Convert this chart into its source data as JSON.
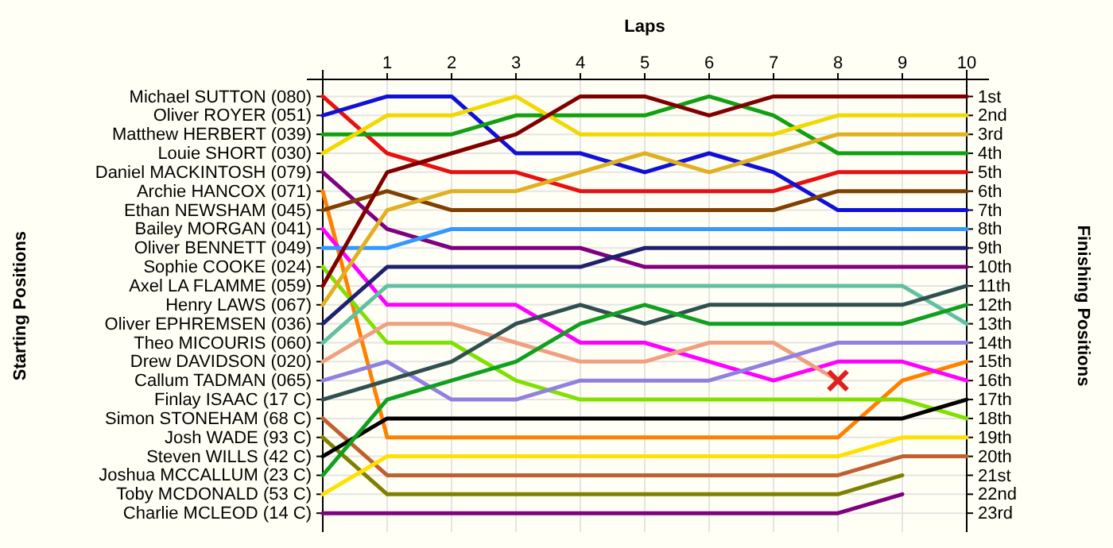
{
  "chart_data": {
    "type": "line",
    "xlabel": "Laps",
    "y2label": "Finishing Positions",
    "x": [
      0,
      1,
      2,
      3,
      4,
      5,
      6,
      7,
      8,
      9,
      10
    ],
    "xlim": [
      0,
      10
    ],
    "xticks": [
      1,
      2,
      3,
      4,
      5,
      6,
      7,
      8,
      9,
      10
    ],
    "y2lim": [
      24,
      0.1
    ],
    "y2ticks": [
      {
        "value": 1,
        "label": "1st"
      },
      {
        "value": 2,
        "label": "2nd"
      },
      {
        "value": 3,
        "label": "3rd"
      },
      {
        "value": 4,
        "label": "4th"
      },
      {
        "value": 5,
        "label": "5th"
      },
      {
        "value": 6,
        "label": "6th"
      },
      {
        "value": 7,
        "label": "7th"
      },
      {
        "value": 8,
        "label": "8th"
      },
      {
        "value": 9,
        "label": "9th"
      },
      {
        "value": 10,
        "label": "10th"
      },
      {
        "value": 11,
        "label": "11th"
      },
      {
        "value": 12,
        "label": "12th"
      },
      {
        "value": 13,
        "label": "13th"
      },
      {
        "value": 14,
        "label": "14th"
      },
      {
        "value": 15,
        "label": "15th"
      },
      {
        "value": 16,
        "label": "16th"
      },
      {
        "value": 17,
        "label": "17th"
      },
      {
        "value": 18,
        "label": "18th"
      },
      {
        "value": 19,
        "label": "19th"
      },
      {
        "value": 20,
        "label": "20th"
      },
      {
        "value": 21,
        "label": "21st"
      },
      {
        "value": 22,
        "label": "22nd"
      },
      {
        "value": 23,
        "label": "23rd"
      }
    ],
    "grid": true,
    "annotations": [
      "Michael SUTTON (080)",
      "Oliver ROYER (051)",
      "Matthew HERBERT (039)",
      "Louie SHORT (030)",
      "Daniel MACKINTOSH (079)",
      "Archie HANCOX (071)",
      "Ethan NEWSHAM (045)",
      "Bailey MORGAN (041)",
      "Oliver BENNETT (049)",
      "Sophie COOKE (024)",
      "Axel LA FLAMME (059)",
      "Henry LAWS (067)",
      "Oliver EPHREMSEN (036)",
      "Theo MICOURIS (060)",
      "Drew DAVIDSON (020)",
      "Callum TADMAN (065)",
      "Finlay ISAAC (17 C)",
      "Simon STONEHAM (68 C)",
      "Josh WADE (93 C)",
      "Steven WILLS (42 C)",
      "Joshua MCCALLUM (23 C)",
      "Toby MCDONALD (53 C)",
      "Charlie MCLEOD (14 C)",
      "Starting Positions"
    ],
    "series": [
      {
        "axis": "y2",
        "color": "#e81010",
        "values": [
          1,
          4,
          5,
          5,
          6,
          6,
          6,
          6,
          5,
          5,
          5
        ]
      },
      {
        "axis": "y2",
        "color": "#1010d8",
        "values": [
          2,
          1,
          1,
          4,
          4,
          5,
          4,
          5,
          7,
          7,
          7
        ]
      },
      {
        "axis": "y2",
        "color": "#10a010",
        "values": [
          3,
          3,
          3,
          2,
          2,
          2,
          1,
          2,
          4,
          4,
          4
        ]
      },
      {
        "axis": "y2",
        "color": "#f0d800",
        "values": [
          4,
          2,
          2,
          1,
          3,
          3,
          3,
          3,
          2,
          2,
          2
        ]
      },
      {
        "axis": "y2",
        "color": "#800080",
        "values": [
          5,
          8,
          9,
          9,
          9,
          10,
          10,
          10,
          10,
          10,
          10
        ]
      },
      {
        "axis": "y2",
        "color": "#ff8000",
        "values": [
          6,
          19,
          19,
          19,
          19,
          19,
          19,
          19,
          19,
          16,
          15
        ]
      },
      {
        "axis": "y2",
        "color": "#804000",
        "values": [
          7,
          6,
          7,
          7,
          7,
          7,
          7,
          7,
          6,
          6,
          6
        ]
      },
      {
        "axis": "y2",
        "color": "#ff00ff",
        "values": [
          8,
          12,
          12,
          12,
          14,
          14,
          15,
          16,
          15,
          15,
          16
        ]
      },
      {
        "axis": "y2",
        "color": "#3399ff",
        "values": [
          9,
          9,
          8,
          8,
          8,
          8,
          8,
          8,
          8,
          8,
          8
        ]
      },
      {
        "axis": "y2",
        "color": "#80e000",
        "values": [
          10,
          14,
          14,
          16,
          17,
          17,
          17,
          17,
          17,
          17,
          18
        ]
      },
      {
        "axis": "y2",
        "color": "#800000",
        "values": [
          11,
          5,
          4,
          3,
          1,
          1,
          2,
          1,
          1,
          1,
          1
        ]
      },
      {
        "axis": "y2",
        "color": "#e0b020",
        "values": [
          12,
          7,
          6,
          6,
          5,
          4,
          5,
          4,
          3,
          3,
          3
        ]
      },
      {
        "axis": "y2",
        "color": "#202070",
        "values": [
          13,
          10,
          10,
          10,
          10,
          9,
          9,
          9,
          9,
          9,
          9
        ]
      },
      {
        "axis": "y2",
        "color": "#60c0a0",
        "values": [
          14,
          11,
          11,
          11,
          11,
          11,
          11,
          11,
          11,
          11,
          13
        ]
      },
      {
        "axis": "y2",
        "color": "#f0a080",
        "values": [
          15,
          13,
          13,
          14,
          15,
          15,
          14,
          14,
          16,
          null,
          null
        ]
      },
      {
        "axis": "y2",
        "color": "#9080e0",
        "values": [
          16,
          15,
          17,
          17,
          16,
          16,
          16,
          15,
          14,
          14,
          14
        ]
      },
      {
        "axis": "y2",
        "color": "#305050",
        "values": [
          17,
          16,
          15,
          13,
          12,
          13,
          12,
          12,
          12,
          12,
          11
        ]
      },
      {
        "axis": "y2",
        "color": "#c06030",
        "values": [
          18,
          21,
          21,
          21,
          21,
          21,
          21,
          21,
          21,
          20,
          20
        ]
      },
      {
        "axis": "y2",
        "color": "#808000",
        "values": [
          19,
          22,
          22,
          22,
          22,
          22,
          22,
          22,
          22,
          21,
          null
        ]
      },
      {
        "axis": "y2",
        "color": "#000000",
        "values": [
          20,
          18,
          18,
          18,
          18,
          18,
          18,
          18,
          18,
          18,
          17
        ]
      },
      {
        "axis": "y2",
        "color": "#10a020",
        "values": [
          21,
          17,
          16,
          15,
          13,
          12,
          13,
          13,
          13,
          13,
          12
        ]
      },
      {
        "axis": "y2",
        "color": "#ffe000",
        "values": [
          22,
          20,
          20,
          20,
          20,
          20,
          20,
          20,
          20,
          19,
          19
        ]
      },
      {
        "axis": "y2",
        "color": "#800080",
        "values": [
          23,
          23,
          23,
          23,
          23,
          23,
          23,
          23,
          23,
          22,
          null
        ]
      },
      {
        "axis": "y2",
        "type": "scatter",
        "marker": "cross",
        "color": "#e02020",
        "x": [
          8
        ],
        "values": [
          16
        ]
      }
    ]
  }
}
